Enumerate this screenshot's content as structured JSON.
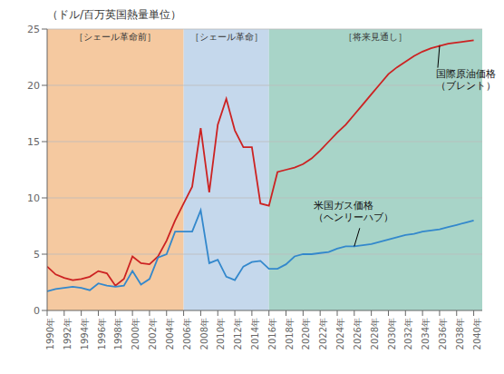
{
  "chart_data": {
    "type": "line",
    "ylabel": "（ドル/百万英国熱量単位）",
    "x": [
      1990,
      1991,
      1992,
      1993,
      1994,
      1995,
      1996,
      1997,
      1998,
      1999,
      2000,
      2001,
      2002,
      2003,
      2004,
      2005,
      2006,
      2007,
      2008,
      2009,
      2010,
      2011,
      2012,
      2013,
      2014,
      2015,
      2016,
      2017,
      2018,
      2019,
      2020,
      2021,
      2022,
      2023,
      2024,
      2025,
      2026,
      2027,
      2028,
      2029,
      2030,
      2031,
      2032,
      2033,
      2034,
      2035,
      2036,
      2037,
      2038,
      2039,
      2040
    ],
    "series": [
      {
        "color": "#CC2222",
        "values": [
          3.9,
          3.2,
          2.9,
          2.7,
          2.8,
          3.0,
          3.5,
          3.3,
          2.2,
          2.8,
          4.8,
          4.2,
          4.1,
          4.8,
          6.2,
          8.0,
          9.5,
          11.0,
          16.2,
          10.5,
          16.5,
          18.8,
          16.0,
          14.5,
          14.5,
          9.5,
          9.3,
          12.3,
          12.5,
          12.7,
          13.0,
          13.5,
          14.2,
          15.0,
          15.8,
          16.5,
          17.4,
          18.3,
          19.2,
          20.1,
          21.0,
          21.6,
          22.1,
          22.6,
          23.0,
          23.3,
          23.5,
          23.7,
          23.8,
          23.9,
          24.0
        ]
      },
      {
        "color": "#3388CC",
        "values": [
          1.7,
          1.9,
          2.0,
          2.1,
          2.0,
          1.8,
          2.4,
          2.2,
          2.1,
          2.2,
          3.5,
          2.3,
          2.8,
          4.7,
          5.0,
          7.0,
          7.0,
          7.0,
          8.9,
          4.2,
          4.5,
          3.0,
          2.7,
          3.9,
          4.3,
          4.4,
          3.7,
          3.7,
          4.1,
          4.8,
          5.0,
          5.0,
          5.1,
          5.2,
          5.5,
          5.7,
          5.7,
          5.8,
          5.9,
          6.1,
          6.3,
          6.5,
          6.7,
          6.8,
          7.0,
          7.1,
          7.2,
          7.4,
          7.6,
          7.8,
          8.0
        ]
      }
    ],
    "annotations": [
      [
        "国際原油価格",
        "（ブレント）"
      ],
      [
        "米国ガス価格",
        "（ヘンリーハブ）"
      ]
    ],
    "regions": [
      {
        "label": "［シェール革命前］",
        "xstart": 1990,
        "xend": 2006,
        "color": "#F5C9A0"
      },
      {
        "label": "［シェール革命］",
        "xstart": 2006,
        "xend": 2016,
        "color": "#C5D8EC"
      },
      {
        "label": "［将来見通し］",
        "xstart": 2016,
        "xend": 2041,
        "color": "#A8D4C8"
      }
    ],
    "xlim": [
      1990,
      2041
    ],
    "xticks": [
      {
        "value": 1990,
        "label": "1990年"
      },
      {
        "value": 1992,
        "label": "1992年"
      },
      {
        "value": 1994,
        "label": "1994年"
      },
      {
        "value": 1996,
        "label": "1996年"
      },
      {
        "value": 1998,
        "label": "1998年"
      },
      {
        "value": 2000,
        "label": "2000年"
      },
      {
        "value": 2002,
        "label": "2002年"
      },
      {
        "value": 2004,
        "label": "2004年"
      },
      {
        "value": 2006,
        "label": "2006年"
      },
      {
        "value": 2008,
        "label": "2008年"
      },
      {
        "value": 2010,
        "label": "2010年"
      },
      {
        "value": 2012,
        "label": "2012年"
      },
      {
        "value": 2014,
        "label": "2014年"
      },
      {
        "value": 2016,
        "label": "2016年"
      },
      {
        "value": 2018,
        "label": "2018年"
      },
      {
        "value": 2020,
        "label": "2020年"
      },
      {
        "value": 2022,
        "label": "2022年"
      },
      {
        "value": 2024,
        "label": "2024年"
      },
      {
        "value": 2026,
        "label": "2026年"
      },
      {
        "value": 2028,
        "label": "2028年"
      },
      {
        "value": 2030,
        "label": "2030年"
      },
      {
        "value": 2032,
        "label": "2032年"
      },
      {
        "value": 2034,
        "label": "2034年"
      },
      {
        "value": 2036,
        "label": "2036年"
      },
      {
        "value": 2038,
        "label": "2038年"
      },
      {
        "value": 2040,
        "label": "2040年"
      }
    ],
    "ylim": [
      0,
      25
    ],
    "yticks": [
      0,
      5,
      10,
      15,
      20,
      25
    ],
    "grid": true
  }
}
